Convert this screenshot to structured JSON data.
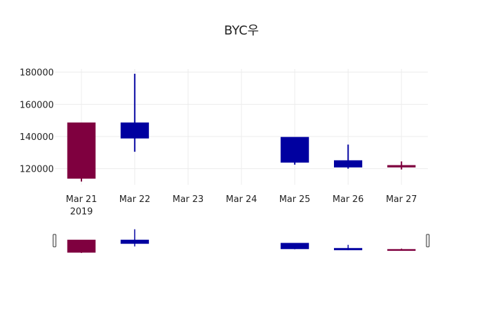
{
  "chart_data": {
    "type": "candlestick",
    "title": "BYC우",
    "x_labels": [
      "Mar 21",
      "Mar 22",
      "Mar 23",
      "Mar 24",
      "Mar 25",
      "Mar 26",
      "Mar 27"
    ],
    "x_year_label": "2019",
    "y_ticks": [
      120000,
      140000,
      160000,
      180000
    ],
    "ylim": [
      110000,
      182000
    ],
    "grid": true,
    "increasing_color": "#7f003f",
    "decreasing_color": "#0000a0",
    "candles": [
      {
        "date": "Mar 21",
        "open": 114000,
        "high": 148500,
        "low": 112000,
        "close": 148500
      },
      {
        "date": "Mar 22",
        "open": 148500,
        "high": 179000,
        "low": 130500,
        "close": 139000
      },
      {
        "date": "Mar 25",
        "open": 139500,
        "high": 139500,
        "low": 122500,
        "close": 124000
      },
      {
        "date": "Mar 26",
        "open": 125000,
        "high": 135000,
        "low": 120000,
        "close": 121000
      },
      {
        "date": "Mar 27",
        "open": 121000,
        "high": 124500,
        "low": 119500,
        "close": 122000
      }
    ]
  }
}
